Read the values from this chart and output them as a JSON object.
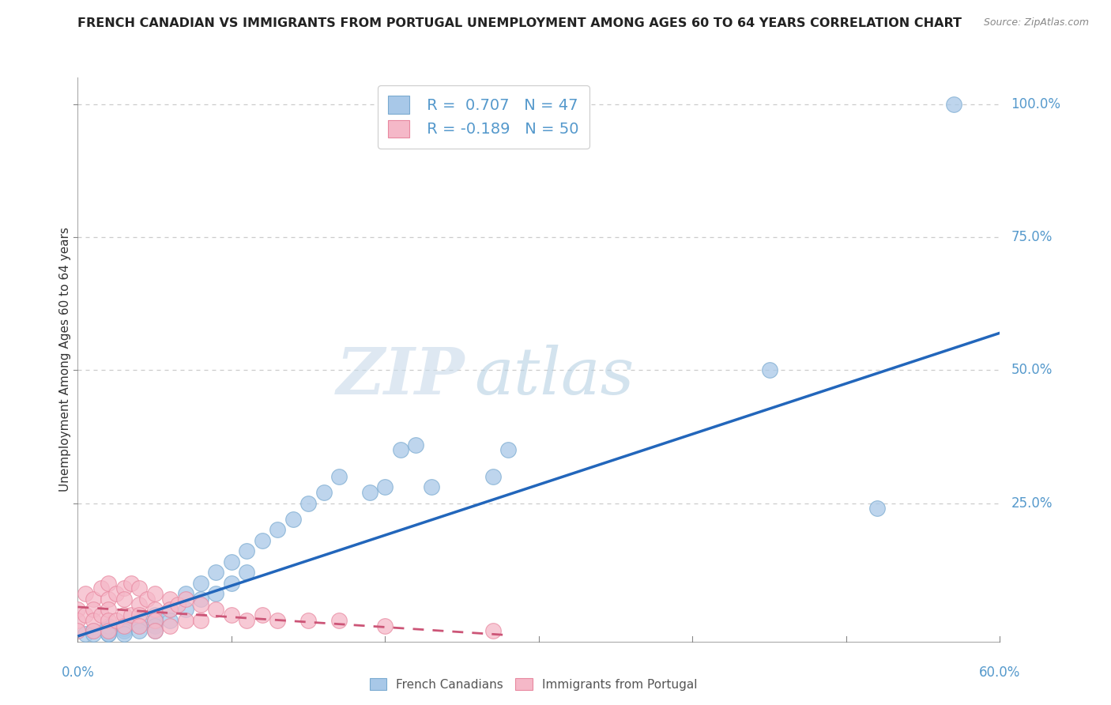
{
  "title": "FRENCH CANADIAN VS IMMIGRANTS FROM PORTUGAL UNEMPLOYMENT AMONG AGES 60 TO 64 YEARS CORRELATION CHART",
  "source": "Source: ZipAtlas.com",
  "ylabel": "Unemployment Among Ages 60 to 64 years",
  "xlim": [
    0.0,
    0.6
  ],
  "ylim": [
    -0.01,
    1.05
  ],
  "ytick_labels": [
    "100.0%",
    "75.0%",
    "50.0%",
    "25.0%"
  ],
  "ytick_values": [
    1.0,
    0.75,
    0.5,
    0.25
  ],
  "grid_color": "#cccccc",
  "background_color": "#ffffff",
  "watermark": "ZIPatlas",
  "watermark_color": "#ccdcee",
  "series1_color_face": "#a8c8e8",
  "series1_color_edge": "#7aaad0",
  "series2_color_face": "#f5b8c8",
  "series2_color_edge": "#e888a0",
  "series1_label": "French Canadians",
  "series2_label": "Immigrants from Portugal",
  "series1_R": "0.707",
  "series1_N": "47",
  "series2_R": "-0.189",
  "series2_N": "50",
  "legend_R_color": "#5599cc",
  "blue_line_color": "#2266bb",
  "pink_line_color": "#cc5577",
  "blue_line_x0": 0.0,
  "blue_line_y0": 0.0,
  "blue_line_x1": 0.6,
  "blue_line_y1": 0.57,
  "pink_line_x0": 0.0,
  "pink_line_y0": 0.055,
  "pink_line_x1": 0.28,
  "pink_line_y1": 0.002,
  "french_x": [
    0.005,
    0.01,
    0.01,
    0.02,
    0.02,
    0.02,
    0.02,
    0.02,
    0.03,
    0.03,
    0.03,
    0.03,
    0.04,
    0.04,
    0.04,
    0.05,
    0.05,
    0.05,
    0.05,
    0.06,
    0.06,
    0.07,
    0.07,
    0.08,
    0.08,
    0.09,
    0.09,
    0.1,
    0.1,
    0.11,
    0.11,
    0.12,
    0.13,
    0.14,
    0.15,
    0.16,
    0.17,
    0.19,
    0.2,
    0.21,
    0.22,
    0.23,
    0.27,
    0.28,
    0.45,
    0.52,
    0.57
  ],
  "french_y": [
    0.005,
    0.01,
    0.005,
    0.015,
    0.01,
    0.005,
    0.02,
    0.005,
    0.02,
    0.015,
    0.01,
    0.005,
    0.03,
    0.02,
    0.01,
    0.04,
    0.03,
    0.02,
    0.01,
    0.05,
    0.03,
    0.08,
    0.05,
    0.1,
    0.07,
    0.12,
    0.08,
    0.14,
    0.1,
    0.16,
    0.12,
    0.18,
    0.2,
    0.22,
    0.25,
    0.27,
    0.3,
    0.27,
    0.28,
    0.35,
    0.36,
    0.28,
    0.3,
    0.35,
    0.5,
    0.24,
    1.0
  ],
  "portugal_x": [
    0.0,
    0.0,
    0.0,
    0.005,
    0.005,
    0.01,
    0.01,
    0.01,
    0.01,
    0.015,
    0.015,
    0.02,
    0.02,
    0.02,
    0.02,
    0.02,
    0.025,
    0.025,
    0.03,
    0.03,
    0.03,
    0.03,
    0.035,
    0.035,
    0.04,
    0.04,
    0.04,
    0.04,
    0.045,
    0.05,
    0.05,
    0.05,
    0.05,
    0.06,
    0.06,
    0.06,
    0.065,
    0.07,
    0.07,
    0.08,
    0.08,
    0.09,
    0.1,
    0.11,
    0.12,
    0.13,
    0.15,
    0.17,
    0.2,
    0.27
  ],
  "portugal_y": [
    0.05,
    0.03,
    0.01,
    0.08,
    0.04,
    0.07,
    0.05,
    0.03,
    0.01,
    0.09,
    0.04,
    0.1,
    0.07,
    0.05,
    0.03,
    0.01,
    0.08,
    0.03,
    0.09,
    0.07,
    0.04,
    0.02,
    0.1,
    0.04,
    0.09,
    0.06,
    0.04,
    0.02,
    0.07,
    0.08,
    0.05,
    0.03,
    0.01,
    0.07,
    0.05,
    0.02,
    0.06,
    0.07,
    0.03,
    0.06,
    0.03,
    0.05,
    0.04,
    0.03,
    0.04,
    0.03,
    0.03,
    0.03,
    0.02,
    0.01
  ]
}
